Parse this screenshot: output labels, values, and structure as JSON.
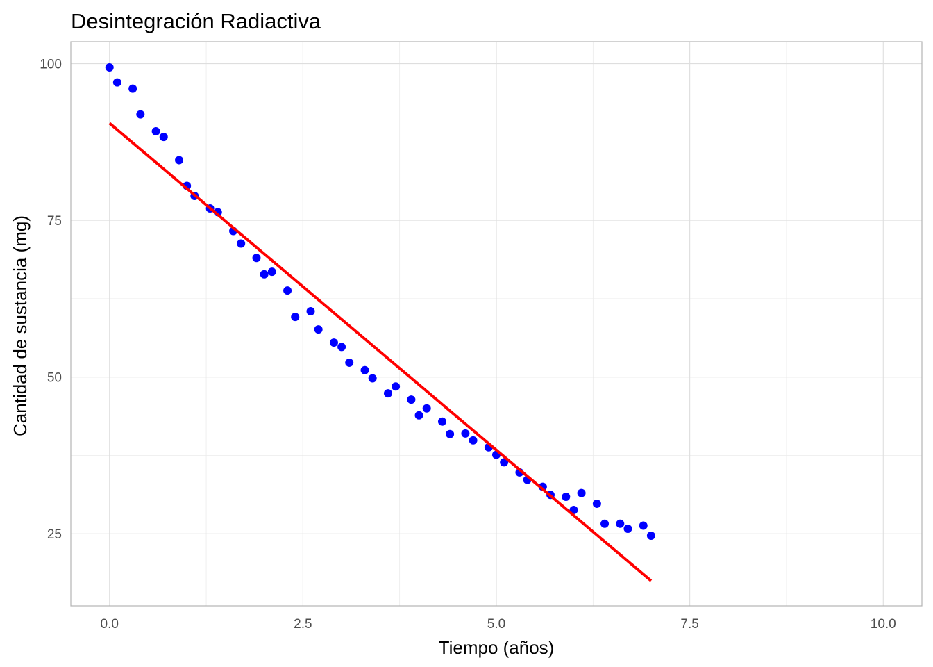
{
  "chart_data": {
    "type": "scatter",
    "title": "Desintegración Radiactiva",
    "xlabel": "Tiempo (años)",
    "ylabel": "Cantidad de sustancia (mg)",
    "xlim": [
      -0.5,
      10.5
    ],
    "ylim": [
      13.5,
      103.5
    ],
    "x_ticks": [
      0,
      2.5,
      5,
      7.5,
      10
    ],
    "x_tick_labels": [
      "0.0",
      "2.5",
      "5.0",
      "7.5",
      "10.0"
    ],
    "y_ticks": [
      25,
      50,
      75,
      100
    ],
    "y_tick_labels": [
      "25",
      "50",
      "75",
      "100"
    ],
    "grid": true,
    "points": {
      "color": "#0000ff",
      "x": [
        0.0,
        0.1,
        0.3,
        0.4,
        0.6,
        0.7,
        0.9,
        1.0,
        1.1,
        1.3,
        1.4,
        1.6,
        1.7,
        1.9,
        2.0,
        2.1,
        2.3,
        2.4,
        2.6,
        2.7,
        2.9,
        3.0,
        3.1,
        3.3,
        3.4,
        3.6,
        3.7,
        3.9,
        4.0,
        4.1,
        4.3,
        4.4,
        4.6,
        4.7,
        4.9,
        5.0,
        5.1,
        5.3,
        5.4,
        5.6,
        5.7,
        5.9,
        6.0,
        6.1,
        6.3,
        6.4,
        6.6,
        6.7,
        6.9,
        7.0
      ],
      "y": [
        99.4,
        97.0,
        96.0,
        91.9,
        89.2,
        88.3,
        84.6,
        80.5,
        78.9,
        76.9,
        76.3,
        73.3,
        71.3,
        69.0,
        66.4,
        66.8,
        63.8,
        59.6,
        60.5,
        57.6,
        55.5,
        54.8,
        52.3,
        51.1,
        49.8,
        47.4,
        48.5,
        46.4,
        43.9,
        45.0,
        42.9,
        40.9,
        41.0,
        39.9,
        38.8,
        37.6,
        36.4,
        34.8,
        33.6,
        32.5,
        31.2,
        30.9,
        28.8,
        31.5,
        29.8,
        26.6,
        26.6,
        25.8,
        26.3,
        24.7
      ]
    },
    "fit_line": {
      "color": "#ff0000",
      "x": [
        0,
        7
      ],
      "y": [
        90.5,
        17.5
      ]
    }
  }
}
